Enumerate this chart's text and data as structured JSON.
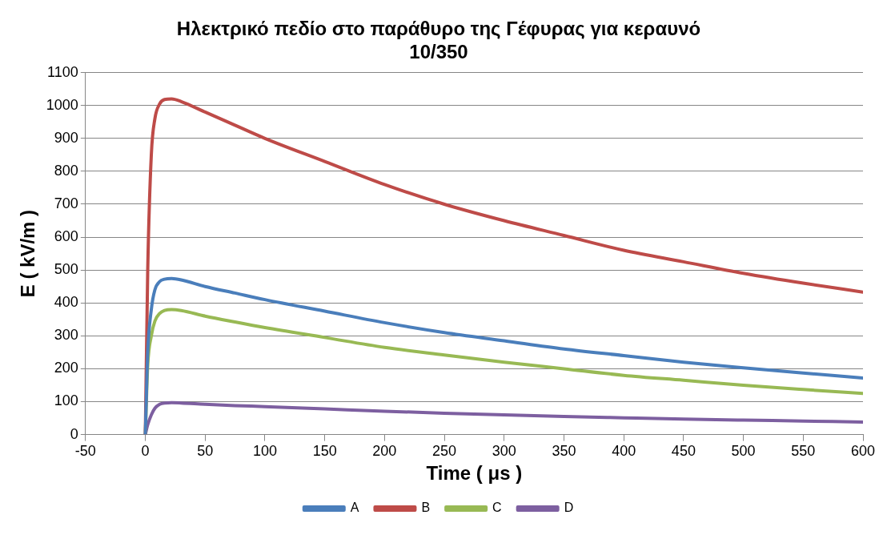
{
  "chart_data": {
    "type": "line",
    "title": "Ηλεκτρικό πεδίο στο παράθυρο της Γέφυρας για κεραυνό 10/350",
    "xlabel": "Time ( μs )",
    "ylabel": "E ( kV/m )",
    "x": [
      0,
      2,
      5,
      8,
      12,
      16,
      22,
      30,
      50,
      75,
      100,
      150,
      200,
      250,
      300,
      350,
      400,
      450,
      500,
      550,
      600
    ],
    "series": [
      {
        "name": "A",
        "color": "#4a7ebb",
        "values": [
          0,
          250,
          380,
          440,
          465,
          472,
          474,
          470,
          450,
          430,
          410,
          375,
          340,
          310,
          285,
          260,
          240,
          220,
          203,
          187,
          172
        ]
      },
      {
        "name": "B",
        "color": "#be4b48",
        "values": [
          0,
          500,
          850,
          960,
          1005,
          1018,
          1020,
          1012,
          980,
          940,
          900,
          830,
          760,
          700,
          650,
          605,
          560,
          525,
          490,
          460,
          433
        ]
      },
      {
        "name": "C",
        "color": "#98b954",
        "values": [
          0,
          210,
          300,
          345,
          368,
          377,
          380,
          377,
          360,
          342,
          325,
          295,
          265,
          242,
          220,
          200,
          180,
          165,
          150,
          137,
          125
        ]
      },
      {
        "name": "D",
        "color": "#7d5fa0",
        "values": [
          0,
          30,
          60,
          80,
          92,
          96,
          97,
          96,
          92,
          88,
          85,
          78,
          71,
          65,
          60,
          55,
          51,
          47,
          44,
          41,
          38
        ]
      }
    ],
    "xlim": [
      -50,
      600
    ],
    "xticks": [
      -50,
      0,
      50,
      100,
      150,
      200,
      250,
      300,
      350,
      400,
      450,
      500,
      550,
      600
    ],
    "ylim": [
      0,
      1100
    ],
    "yticks": [
      0,
      100,
      200,
      300,
      400,
      500,
      600,
      700,
      800,
      900,
      1000,
      1100
    ],
    "grid": "y",
    "legend": "bottom",
    "marker": "none",
    "line_style": "solid"
  }
}
